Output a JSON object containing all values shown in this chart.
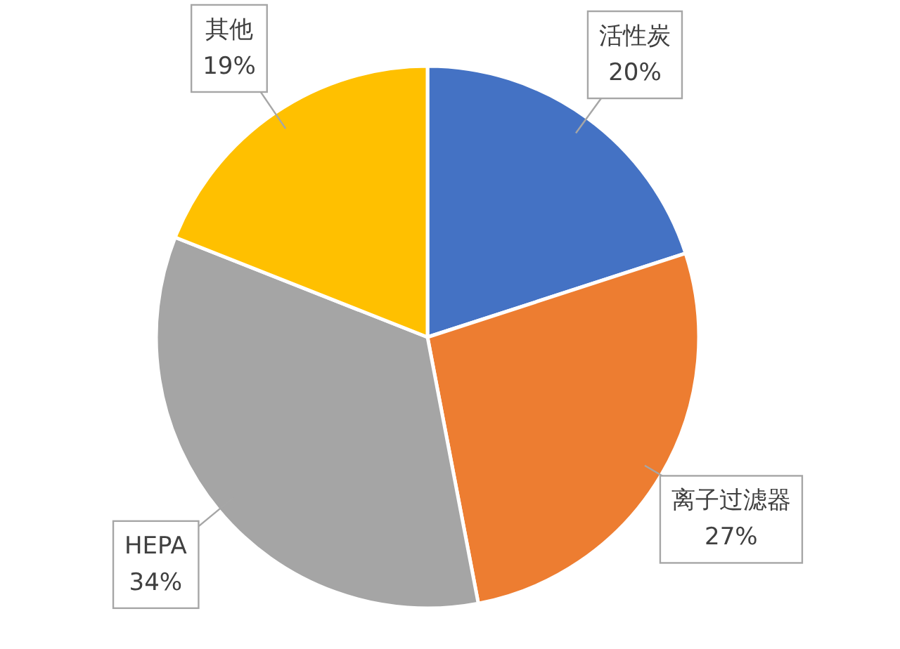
{
  "chart_data": {
    "type": "pie",
    "categories": [
      "活性炭",
      "离子过滤器",
      "HEPA",
      "其他"
    ],
    "values": [
      20,
      27,
      34,
      19
    ],
    "colors": [
      "#4472c4",
      "#ed7d31",
      "#a5a5a5",
      "#ffc000"
    ],
    "value_labels": [
      "20%",
      "27%",
      "34%",
      "19%"
    ]
  }
}
